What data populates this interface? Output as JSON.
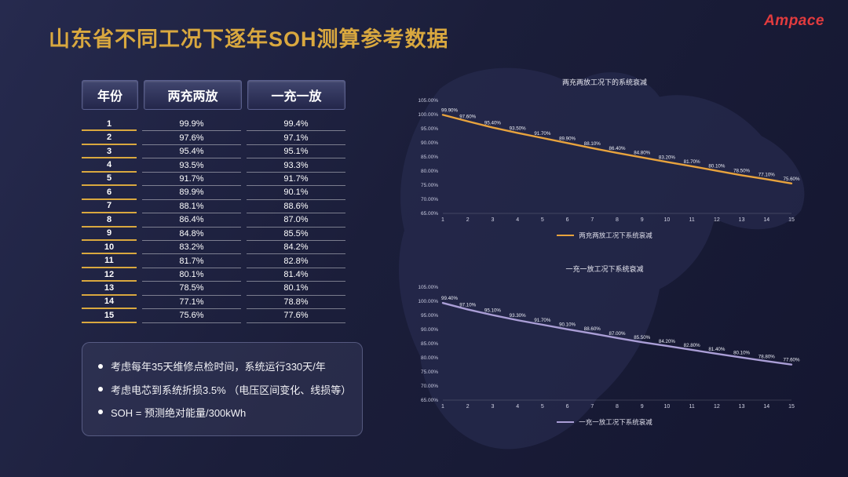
{
  "slide": {
    "title": "山东省不同工况下逐年SOH测算参考数据",
    "logo": "Ampace"
  },
  "table": {
    "headers": [
      "年份",
      "两充两放",
      "一充一放"
    ],
    "rows": [
      [
        "1",
        "99.9%",
        "99.4%"
      ],
      [
        "2",
        "97.6%",
        "97.1%"
      ],
      [
        "3",
        "95.4%",
        "95.1%"
      ],
      [
        "4",
        "93.5%",
        "93.3%"
      ],
      [
        "5",
        "91.7%",
        "91.7%"
      ],
      [
        "6",
        "89.9%",
        "90.1%"
      ],
      [
        "7",
        "88.1%",
        "88.6%"
      ],
      [
        "8",
        "86.4%",
        "87.0%"
      ],
      [
        "9",
        "84.8%",
        "85.5%"
      ],
      [
        "10",
        "83.2%",
        "84.2%"
      ],
      [
        "11",
        "81.7%",
        "82.8%"
      ],
      [
        "12",
        "80.1%",
        "81.4%"
      ],
      [
        "13",
        "78.5%",
        "80.1%"
      ],
      [
        "14",
        "77.1%",
        "78.8%"
      ],
      [
        "15",
        "75.6%",
        "77.6%"
      ]
    ]
  },
  "notes": {
    "items": [
      "考虑每年35天维修点检时间，系统运行330天/年",
      "考虑电芯到系统折损3.5% （电压区间变化、线损等）",
      "SOH = 预测绝对能量/300kWh"
    ]
  },
  "colors": {
    "accent_gold": "#d9a83f",
    "line_orange": "#e8a33d",
    "line_purple": "#aa9ed6",
    "logo_red": "#e23b3e"
  },
  "chart_data": [
    {
      "type": "line",
      "title": "两充两放工况下的系统衰减",
      "legend": "两充两放工况下系统衰减",
      "color": "#e8a33d",
      "x": [
        1,
        2,
        3,
        4,
        5,
        6,
        7,
        8,
        9,
        10,
        11,
        12,
        13,
        14,
        15
      ],
      "values": [
        99.9,
        97.6,
        95.4,
        93.5,
        91.7,
        89.9,
        88.1,
        86.4,
        84.8,
        83.2,
        81.7,
        80.1,
        78.5,
        77.1,
        75.6
      ],
      "xlabel": "",
      "ylabel": "",
      "ylim": [
        65,
        105
      ],
      "ytick_step": 5,
      "grid": false,
      "legend_position": "bottom"
    },
    {
      "type": "line",
      "title": "一充一放工况下系统衰减",
      "legend": "一充一放工况下系统衰减",
      "color": "#aa9ed6",
      "x": [
        1,
        2,
        3,
        4,
        5,
        6,
        7,
        8,
        9,
        10,
        11,
        12,
        13,
        14,
        15
      ],
      "values": [
        99.4,
        97.1,
        95.1,
        93.3,
        91.7,
        90.1,
        88.6,
        87.0,
        85.5,
        84.2,
        82.8,
        81.4,
        80.1,
        78.8,
        77.6
      ],
      "xlabel": "",
      "ylabel": "",
      "ylim": [
        65,
        105
      ],
      "ytick_step": 5,
      "grid": false,
      "legend_position": "bottom"
    }
  ]
}
